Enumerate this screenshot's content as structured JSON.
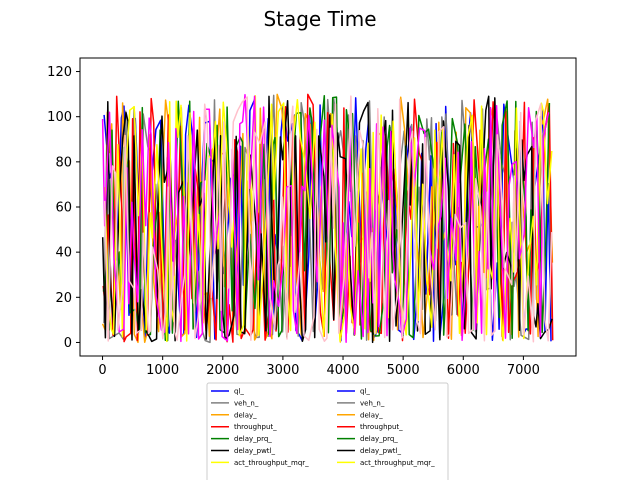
{
  "chart_data": {
    "type": "line",
    "title": "Stage Time",
    "xlabel": "",
    "ylabel": "",
    "xlim": [
      -375,
      7875
    ],
    "ylim": [
      -6,
      126
    ],
    "x_ticks": [
      0,
      1000,
      2000,
      3000,
      4000,
      5000,
      6000,
      7000
    ],
    "y_ticks": [
      0,
      20,
      40,
      60,
      80,
      100,
      120
    ],
    "grid": false,
    "legend_placement": "below plot, centered, two columns, partially cut off",
    "x_end": 7500,
    "series_colors": {
      "blue": "#0000ff",
      "gray": "#808080",
      "orange": "#ffa500",
      "red": "#ff0000",
      "green": "#008000",
      "black": "#000000",
      "yellow": "#ffff00",
      "magenta": "#ff00ff",
      "pink": "#ffc0cb"
    },
    "legend": [
      {
        "name": "ql_",
        "color": "#0000ff"
      },
      {
        "name": "ql_",
        "color": "#0000ff"
      },
      {
        "name": "veh_n_",
        "color": "#808080"
      },
      {
        "name": "veh_n_",
        "color": "#808080"
      },
      {
        "name": "delay_",
        "color": "#ffa500"
      },
      {
        "name": "delay_",
        "color": "#ffa500"
      },
      {
        "name": "throughput_",
        "color": "#ff0000"
      },
      {
        "name": "throughput_",
        "color": "#ff0000"
      },
      {
        "name": "delay_prq_",
        "color": "#008000"
      },
      {
        "name": "delay_prq_",
        "color": "#008000"
      },
      {
        "name": "delay_pwtl_",
        "color": "#000000"
      },
      {
        "name": "delay_pwtl_",
        "color": "#000000"
      },
      {
        "name": "act_throughput_mqr_",
        "color": "#ffff00"
      },
      {
        "name": "act_throughput_mqr_",
        "color": "#ffff00"
      }
    ]
  }
}
